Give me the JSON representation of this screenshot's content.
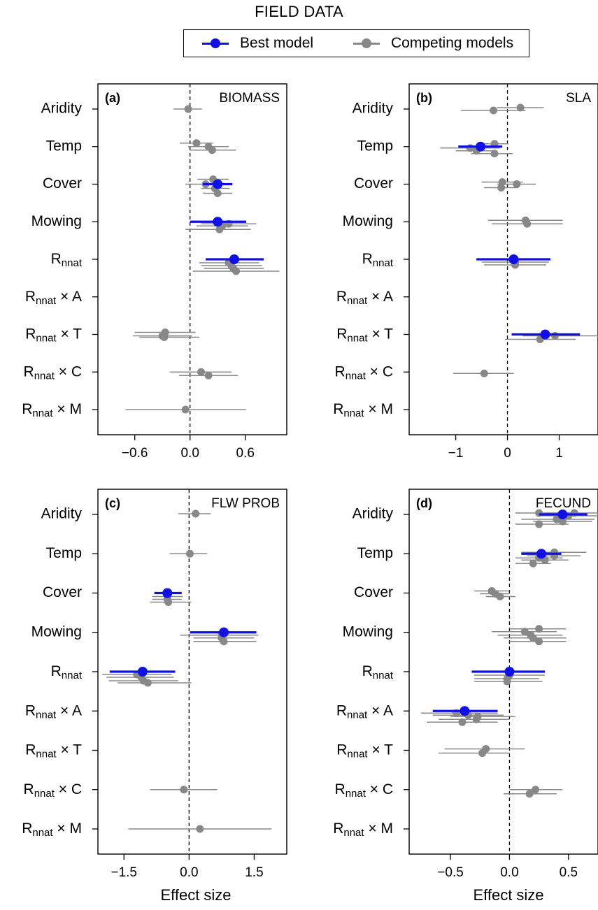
{
  "header": {
    "title": "FIELD DATA",
    "xlabel": "Effect size"
  },
  "legend": {
    "items": [
      {
        "label": "Best model",
        "color": "#1010e6"
      },
      {
        "label": "Competing models",
        "color": "#888888"
      }
    ]
  },
  "colors": {
    "best": "#1010e6",
    "competing": "#888888"
  },
  "chart_data": [
    {
      "type": "scatter",
      "panel": "(a)",
      "title": "BIOMASS",
      "xlabel": "Effect size",
      "xlim": [
        -1.0,
        1.05
      ],
      "xticks": [
        -0.6,
        0.0,
        0.6
      ],
      "xtick_labels": [
        "−0.6",
        "0.0",
        "0.6"
      ],
      "predictors": [
        "Aridity",
        "Temp",
        "Cover",
        "Mowing",
        "Rnnat",
        "Rnnat × A",
        "Rnnat × T",
        "Rnnat × C",
        "Rnnat × M"
      ],
      "series": [
        {
          "name": "Best model",
          "points": [
            {
              "row": 2,
              "est": 0.3,
              "lo": 0.14,
              "hi": 0.46
            },
            {
              "row": 3,
              "est": 0.3,
              "lo": 0.0,
              "hi": 0.61
            },
            {
              "row": 4,
              "est": 0.48,
              "lo": 0.17,
              "hi": 0.8
            }
          ]
        },
        {
          "name": "Competing models",
          "points": [
            {
              "row": 0,
              "est": -0.02,
              "lo": -0.18,
              "hi": 0.13,
              "off": 0
            },
            {
              "row": 1,
              "est": 0.07,
              "lo": -0.11,
              "hi": 0.25,
              "off": -5
            },
            {
              "row": 1,
              "est": 0.2,
              "lo": -0.02,
              "hi": 0.42,
              "off": 0
            },
            {
              "row": 1,
              "est": 0.24,
              "lo": 0.0,
              "hi": 0.5,
              "off": 5
            },
            {
              "row": 2,
              "est": 0.25,
              "lo": 0.08,
              "hi": 0.42,
              "off": -7
            },
            {
              "row": 2,
              "est": 0.17,
              "lo": -0.05,
              "hi": 0.4,
              "off": 0
            },
            {
              "row": 2,
              "est": 0.27,
              "lo": 0.12,
              "hi": 0.43,
              "off": 6
            },
            {
              "row": 2,
              "est": 0.3,
              "lo": 0.14,
              "hi": 0.46,
              "off": 13
            },
            {
              "row": 3,
              "est": 0.35,
              "lo": 0.07,
              "hi": 0.63,
              "off": 6
            },
            {
              "row": 3,
              "est": 0.42,
              "lo": 0.12,
              "hi": 0.72,
              "off": 3
            },
            {
              "row": 3,
              "est": 0.32,
              "lo": -0.05,
              "hi": 0.66,
              "off": 11
            },
            {
              "row": 4,
              "est": 0.42,
              "lo": 0.1,
              "hi": 0.75,
              "off": 5
            },
            {
              "row": 4,
              "est": 0.45,
              "lo": 0.12,
              "hi": 0.78,
              "off": 9
            },
            {
              "row": 4,
              "est": 0.47,
              "lo": 0.15,
              "hi": 0.8,
              "off": 13
            },
            {
              "row": 4,
              "est": 0.5,
              "lo": 0.03,
              "hi": 0.97,
              "off": 17
            },
            {
              "row": 6,
              "est": -0.27,
              "lo": -0.6,
              "hi": 0.06,
              "off": -3
            },
            {
              "row": 6,
              "est": -0.3,
              "lo": -0.62,
              "hi": 0.02,
              "off": 2
            },
            {
              "row": 6,
              "est": -0.28,
              "lo": -0.55,
              "hi": 0.1,
              "off": 4
            },
            {
              "row": 7,
              "est": 0.12,
              "lo": -0.22,
              "hi": 0.45,
              "off": 0
            },
            {
              "row": 7,
              "est": 0.2,
              "lo": -0.12,
              "hi": 0.52,
              "off": 5
            },
            {
              "row": 8,
              "est": -0.05,
              "lo": -0.7,
              "hi": 0.61,
              "off": 0
            }
          ]
        }
      ]
    },
    {
      "type": "scatter",
      "panel": "(b)",
      "title": "SLA",
      "xlabel": "Effect size",
      "xlim": [
        -1.9,
        1.75
      ],
      "xticks": [
        -1,
        0,
        1
      ],
      "xtick_labels": [
        "−1",
        "0",
        "1"
      ],
      "predictors": [
        "Aridity",
        "Temp",
        "Cover",
        "Mowing",
        "Rnnat",
        "Rnnat × A",
        "Rnnat × T",
        "Rnnat × C",
        "Rnnat × M"
      ],
      "series": [
        {
          "name": "Best model",
          "points": [
            {
              "row": 1,
              "est": -0.52,
              "lo": -0.95,
              "hi": -0.1
            },
            {
              "row": 4,
              "est": 0.12,
              "lo": -0.6,
              "hi": 0.83
            },
            {
              "row": 6,
              "est": 0.73,
              "lo": 0.08,
              "hi": 1.4
            }
          ]
        },
        {
          "name": "Competing models",
          "points": [
            {
              "row": 0,
              "est": -0.27,
              "lo": -0.9,
              "hi": 0.35,
              "off": 2
            },
            {
              "row": 0,
              "est": 0.25,
              "lo": -0.2,
              "hi": 0.7,
              "off": -2
            },
            {
              "row": 1,
              "est": -0.25,
              "lo": -0.5,
              "hi": 0.02,
              "off": -4
            },
            {
              "row": 1,
              "est": -0.72,
              "lo": -1.3,
              "hi": -0.15,
              "off": 2
            },
            {
              "row": 1,
              "est": -0.6,
              "lo": -1.0,
              "hi": -0.2,
              "off": 6
            },
            {
              "row": 1,
              "est": -0.25,
              "lo": -0.7,
              "hi": 0.1,
              "off": 10
            },
            {
              "row": 2,
              "est": -0.1,
              "lo": -0.5,
              "hi": 0.3,
              "off": -3
            },
            {
              "row": 2,
              "est": 0.18,
              "lo": -0.2,
              "hi": 0.55,
              "off": 0
            },
            {
              "row": 2,
              "est": -0.12,
              "lo": -0.45,
              "hi": 0.2,
              "off": 5
            },
            {
              "row": 3,
              "est": 0.35,
              "lo": -0.38,
              "hi": 1.07,
              "off": -2
            },
            {
              "row": 3,
              "est": 0.38,
              "lo": -0.3,
              "hi": 1.07,
              "off": 3
            },
            {
              "row": 4,
              "est": 0.15,
              "lo": -0.5,
              "hi": 0.8,
              "off": 4
            },
            {
              "row": 4,
              "est": 0.15,
              "lo": -0.45,
              "hi": 0.75,
              "off": 8
            },
            {
              "row": 6,
              "est": 0.92,
              "lo": 0.3,
              "hi": 1.75,
              "off": 2
            },
            {
              "row": 6,
              "est": 0.63,
              "lo": -0.05,
              "hi": 1.32,
              "off": 7
            },
            {
              "row": 7,
              "est": -0.45,
              "lo": -1.05,
              "hi": 0.12,
              "off": 2
            }
          ]
        }
      ]
    },
    {
      "type": "scatter",
      "panel": "(c)",
      "title": "FLW PROB",
      "xlabel": "Effect size",
      "xlim": [
        -2.1,
        2.25
      ],
      "xticks": [
        -1.5,
        0.0,
        1.5
      ],
      "xtick_labels": [
        "−1.5",
        "0.0",
        "1.5"
      ],
      "predictors": [
        "Aridity",
        "Temp",
        "Cover",
        "Mowing",
        "Rnnat",
        "Rnnat × A",
        "Rnnat × T",
        "Rnnat × C",
        "Rnnat × M"
      ],
      "series": [
        {
          "name": "Best model",
          "points": [
            {
              "row": 2,
              "est": -0.5,
              "lo": -0.8,
              "hi": -0.17
            },
            {
              "row": 3,
              "est": 0.8,
              "lo": 0.02,
              "hi": 1.55
            },
            {
              "row": 4,
              "est": -1.07,
              "lo": -1.83,
              "hi": -0.32
            }
          ]
        },
        {
          "name": "Competing models",
          "points": [
            {
              "row": 0,
              "est": 0.15,
              "lo": -0.25,
              "hi": 0.5,
              "off": -1
            },
            {
              "row": 1,
              "est": 0.02,
              "lo": -0.45,
              "hi": 0.42,
              "off": 0
            },
            {
              "row": 2,
              "est": -0.5,
              "lo": -0.85,
              "hi": -0.15,
              "off": 5
            },
            {
              "row": 2,
              "est": -0.5,
              "lo": -0.85,
              "hi": -0.17,
              "off": 9
            },
            {
              "row": 2,
              "est": -0.48,
              "lo": -0.9,
              "hi": 0.05,
              "off": 13
            },
            {
              "row": 3,
              "est": 0.75,
              "lo": -0.2,
              "hi": 1.6,
              "off": 4
            },
            {
              "row": 3,
              "est": 0.75,
              "lo": 0.1,
              "hi": 1.5,
              "off": 8
            },
            {
              "row": 3,
              "est": 0.8,
              "lo": 0.1,
              "hi": 1.55,
              "off": 13
            },
            {
              "row": 4,
              "est": -1.2,
              "lo": -2.0,
              "hi": -0.4,
              "off": 4
            },
            {
              "row": 4,
              "est": -1.1,
              "lo": -1.9,
              "hi": -0.35,
              "off": 8
            },
            {
              "row": 4,
              "est": -1.05,
              "lo": -1.85,
              "hi": -0.25,
              "off": 13
            },
            {
              "row": 4,
              "est": -0.95,
              "lo": -1.65,
              "hi": 0.05,
              "off": 16
            },
            {
              "row": 7,
              "est": -0.12,
              "lo": -0.9,
              "hi": 0.65,
              "off": 0
            },
            {
              "row": 8,
              "est": 0.25,
              "lo": -1.4,
              "hi": 1.9,
              "off": 0
            }
          ]
        }
      ]
    },
    {
      "type": "scatter",
      "panel": "(d)",
      "title": "FECUND",
      "xlabel": "Effect size",
      "xlim": [
        -0.85,
        0.75
      ],
      "xticks": [
        -0.5,
        0.0,
        0.5
      ],
      "xtick_labels": [
        "−0.5",
        "0.0",
        "0.5"
      ],
      "predictors": [
        "Aridity",
        "Temp",
        "Cover",
        "Mowing",
        "Rnnat",
        "Rnnat × A",
        "Rnnat × T",
        "Rnnat × C",
        "Rnnat × M"
      ],
      "series": [
        {
          "name": "Best model",
          "points": [
            {
              "row": 0,
              "est": 0.45,
              "lo": 0.25,
              "hi": 0.66
            },
            {
              "row": 1,
              "est": 0.27,
              "lo": 0.1,
              "hi": 0.44
            },
            {
              "row": 4,
              "est": 0.0,
              "lo": -0.32,
              "hi": 0.3
            },
            {
              "row": 5,
              "est": -0.38,
              "lo": -0.65,
              "hi": -0.1
            }
          ]
        },
        {
          "name": "Competing models",
          "points": [
            {
              "row": 0,
              "est": 0.25,
              "lo": 0.05,
              "hi": 0.5,
              "off": -2
            },
            {
              "row": 0,
              "est": 0.55,
              "lo": 0.3,
              "hi": 0.8,
              "off": -2
            },
            {
              "row": 0,
              "est": 0.5,
              "lo": 0.25,
              "hi": 0.78,
              "off": 2
            },
            {
              "row": 0,
              "est": 0.4,
              "lo": 0.1,
              "hi": 0.72,
              "off": 7
            },
            {
              "row": 0,
              "est": 0.45,
              "lo": 0.2,
              "hi": 0.7,
              "off": 10
            },
            {
              "row": 0,
              "est": 0.25,
              "lo": 0.05,
              "hi": 0.5,
              "off": 14
            },
            {
              "row": 1,
              "est": 0.38,
              "lo": 0.1,
              "hi": 0.65,
              "off": -2
            },
            {
              "row": 1,
              "est": 0.38,
              "lo": 0.15,
              "hi": 0.6,
              "off": 3
            },
            {
              "row": 1,
              "est": 0.25,
              "lo": 0.05,
              "hi": 0.45,
              "off": 6
            },
            {
              "row": 1,
              "est": 0.3,
              "lo": 0.1,
              "hi": 0.5,
              "off": 9
            },
            {
              "row": 1,
              "est": 0.2,
              "lo": 0.05,
              "hi": 0.35,
              "off": 14
            },
            {
              "row": 2,
              "est": -0.15,
              "lo": -0.3,
              "hi": 0.0,
              "off": -3
            },
            {
              "row": 2,
              "est": -0.12,
              "lo": -0.25,
              "hi": 0.0,
              "off": 1
            },
            {
              "row": 2,
              "est": -0.08,
              "lo": -0.2,
              "hi": 0.05,
              "off": 5
            },
            {
              "row": 3,
              "est": 0.13,
              "lo": -0.15,
              "hi": 0.4,
              "off": -1
            },
            {
              "row": 3,
              "est": 0.25,
              "lo": 0.0,
              "hi": 0.48,
              "off": -5
            },
            {
              "row": 3,
              "est": 0.18,
              "lo": -0.1,
              "hi": 0.45,
              "off": 4
            },
            {
              "row": 3,
              "est": 0.2,
              "lo": -0.05,
              "hi": 0.48,
              "off": 8
            },
            {
              "row": 3,
              "est": 0.25,
              "lo": 0.0,
              "hi": 0.48,
              "off": 13
            },
            {
              "row": 4,
              "est": 0.0,
              "lo": -0.3,
              "hi": 0.3,
              "off": 5
            },
            {
              "row": 4,
              "est": -0.02,
              "lo": -0.3,
              "hi": 0.25,
              "off": 10
            },
            {
              "row": 4,
              "est": -0.02,
              "lo": -0.3,
              "hi": 0.28,
              "off": 14
            },
            {
              "row": 5,
              "est": -0.45,
              "lo": -0.75,
              "hi": -0.1,
              "off": 3
            },
            {
              "row": 5,
              "est": -0.35,
              "lo": -0.65,
              "hi": -0.05,
              "off": 6
            },
            {
              "row": 5,
              "est": -0.27,
              "lo": -0.5,
              "hi": 0.05,
              "off": 8
            },
            {
              "row": 5,
              "est": -0.28,
              "lo": -0.6,
              "hi": 0.0,
              "off": 12
            },
            {
              "row": 5,
              "est": -0.4,
              "lo": -0.7,
              "hi": -0.1,
              "off": 16
            },
            {
              "row": 6,
              "est": -0.2,
              "lo": -0.55,
              "hi": 0.13,
              "off": -2
            },
            {
              "row": 6,
              "est": -0.23,
              "lo": -0.6,
              "hi": 0.0,
              "off": 4
            },
            {
              "row": 7,
              "est": 0.22,
              "lo": 0.0,
              "hi": 0.45,
              "off": 0
            },
            {
              "row": 7,
              "est": 0.17,
              "lo": -0.05,
              "hi": 0.4,
              "off": 6
            }
          ]
        }
      ]
    }
  ]
}
